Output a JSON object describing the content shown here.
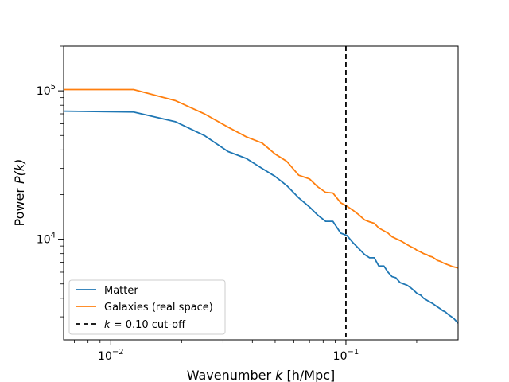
{
  "chart_data": {
    "type": "line",
    "xscale": "log",
    "yscale": "log",
    "xlim": [
      0.0063,
      0.3
    ],
    "ylim": [
      2100,
      200000
    ],
    "xlabel": {
      "prefix": "Wavenumber ",
      "var": "k",
      "unit": " [h/Mpc]"
    },
    "ylabel": {
      "prefix": "Power ",
      "var": "P(k)"
    },
    "x_ticks": [
      {
        "value": 0.01,
        "base": "10",
        "exp": "−2"
      },
      {
        "value": 0.1,
        "base": "10",
        "exp": "−1"
      }
    ],
    "y_ticks": [
      {
        "value": 10000,
        "base": "10",
        "exp": "4"
      },
      {
        "value": 100000,
        "base": "10",
        "exp": "5"
      }
    ],
    "grid": false,
    "legend_position": "lower-left",
    "series": [
      {
        "name": "Matter",
        "color": "#1f77b4",
        "x": [
          0.0063,
          0.0125,
          0.0188,
          0.025,
          0.0315,
          0.0377,
          0.044,
          0.05,
          0.056,
          0.063,
          0.07,
          0.076,
          0.082,
          0.088,
          0.095,
          0.101,
          0.107,
          0.113,
          0.12,
          0.126,
          0.132,
          0.138,
          0.145,
          0.151,
          0.157,
          0.163,
          0.17,
          0.176,
          0.182,
          0.189,
          0.195,
          0.201,
          0.208,
          0.214,
          0.22,
          0.226,
          0.233,
          0.239,
          0.245,
          0.252,
          0.258,
          0.264,
          0.27,
          0.277,
          0.283,
          0.289,
          0.295,
          0.3
        ],
        "y": [
          73000,
          72000,
          62000,
          50000,
          39000,
          35000,
          30000,
          26500,
          23000,
          19000,
          16500,
          14500,
          13200,
          13200,
          11000,
          10600,
          9500,
          8700,
          7900,
          7500,
          7500,
          6600,
          6600,
          6000,
          5600,
          5500,
          5100,
          5000,
          4900,
          4700,
          4500,
          4300,
          4200,
          4000,
          3900,
          3800,
          3700,
          3600,
          3500,
          3400,
          3300,
          3250,
          3150,
          3050,
          2980,
          2900,
          2800,
          2720
        ]
      },
      {
        "name": "Galaxies (real space)",
        "color": "#ff7f0e",
        "x": [
          0.0063,
          0.0125,
          0.0188,
          0.025,
          0.0315,
          0.0377,
          0.044,
          0.05,
          0.056,
          0.063,
          0.07,
          0.076,
          0.082,
          0.088,
          0.095,
          0.101,
          0.107,
          0.113,
          0.12,
          0.126,
          0.132,
          0.138,
          0.145,
          0.151,
          0.157,
          0.163,
          0.17,
          0.176,
          0.182,
          0.189,
          0.195,
          0.201,
          0.208,
          0.214,
          0.22,
          0.226,
          0.233,
          0.239,
          0.245,
          0.252,
          0.258,
          0.264,
          0.27,
          0.277,
          0.283,
          0.289,
          0.295,
          0.3
        ],
        "y": [
          102000,
          102000,
          86000,
          70000,
          57000,
          49000,
          44500,
          37500,
          33500,
          27000,
          25500,
          22500,
          20700,
          20500,
          17600,
          16700,
          15700,
          14700,
          13500,
          13100,
          12800,
          11900,
          11400,
          11000,
          10400,
          10100,
          9800,
          9500,
          9200,
          8900,
          8700,
          8400,
          8200,
          8000,
          7900,
          7700,
          7600,
          7400,
          7200,
          7100,
          6950,
          6850,
          6750,
          6650,
          6550,
          6500,
          6450,
          6400
        ]
      },
      {
        "name": "k = 0.10 cut-off",
        "type": "vline",
        "x": 0.1,
        "color": "#000000",
        "linestyle": "dashed",
        "label_var": "k",
        "label_rest": " = 0.10 cut-off"
      }
    ]
  }
}
